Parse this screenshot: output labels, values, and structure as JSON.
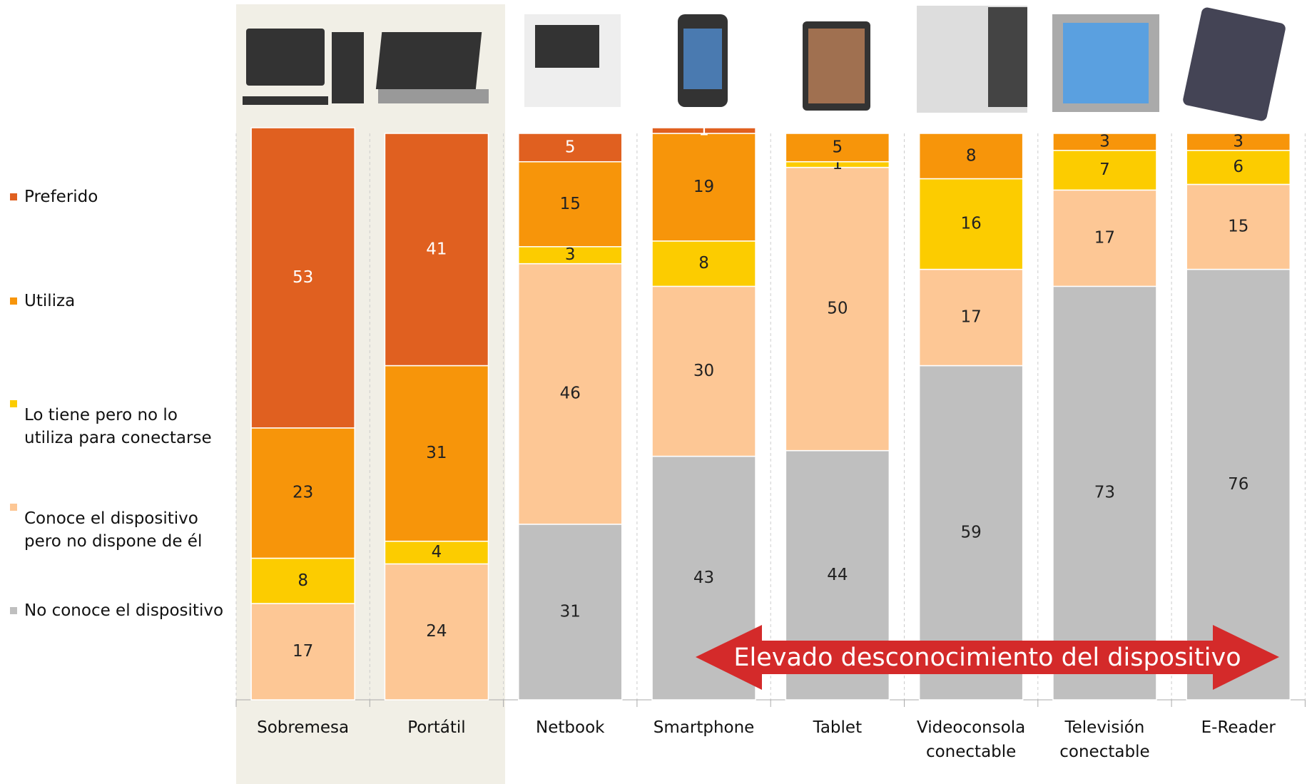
{
  "chart_data": {
    "type": "stacked_bar",
    "categories": [
      "Sobremesa",
      "Portátil",
      "Netbook",
      "Smartphone",
      "Tablet",
      "Videoconsola conectable",
      "Televisión conectable",
      "E-Reader"
    ],
    "series": [
      {
        "name": "Preferido",
        "color": "#e06020",
        "values": [
          53,
          41,
          5,
          1,
          null,
          null,
          null,
          null
        ]
      },
      {
        "name": "Utiliza",
        "color": "#f7950a",
        "values": [
          23,
          31,
          15,
          19,
          5,
          8,
          3,
          3
        ]
      },
      {
        "name": "Lo tiene pero no lo utiliza para conectarse",
        "color": "#fccc00",
        "values": [
          8,
          4,
          3,
          8,
          1,
          16,
          7,
          6
        ]
      },
      {
        "name": "Conoce el dispositivo pero no dispone de él",
        "color": "#fdc795",
        "values": [
          17,
          24,
          46,
          30,
          50,
          17,
          17,
          15
        ]
      },
      {
        "name": "No conoce el dispositivo",
        "color": "#bfbfbf",
        "values": [
          null,
          null,
          31,
          43,
          44,
          59,
          73,
          76
        ]
      }
    ],
    "ylim": [
      0,
      100
    ],
    "annotation": "Elevado desconocimiento del dispositivo"
  }
}
